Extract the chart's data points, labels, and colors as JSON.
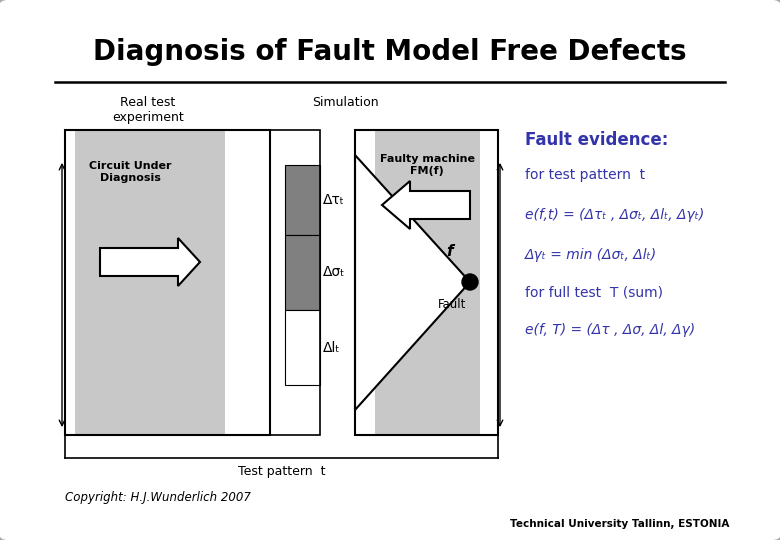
{
  "title": "Diagnosis of Fault Model Free Defects",
  "title_fontsize": 20,
  "background_color": "#e8e8e8",
  "slide_bg": "#ffffff",
  "copyright": "Copyright: H.J.Wunderlich 2007",
  "footer": "Technical University Tallinn, ESTONIA",
  "label_real": "Real test\nexperiment",
  "label_simulation": "Simulation",
  "label_circuit": "Circuit Under\nDiagnosis",
  "label_faulty": "Faulty machine\nFM(f)",
  "label_fault": "Fault",
  "label_f": "f",
  "label_testpattern": "Test pattern  t",
  "fault_evidence_title": "Fault evidence:",
  "line1": "for test pattern  t",
  "line2": "e(f,t) = (Δτₜ , Δσₜ, Δlₜ, Δγₜ)",
  "line3": "Δγₜ = min (Δσₜ, Δlₜ)",
  "line4": "for full test  T (sum)",
  "line5": "e(f, T) = (Δτ , Δσ, Δl, Δγ)",
  "delta_tau": "Δτₜ",
  "delta_sigma": "Δσₜ",
  "delta_l": "Δlₜ",
  "blue_color": "#3333aa",
  "gray_light": "#c8c8c8",
  "gray_dark": "#808080",
  "box_outline": "#000000"
}
